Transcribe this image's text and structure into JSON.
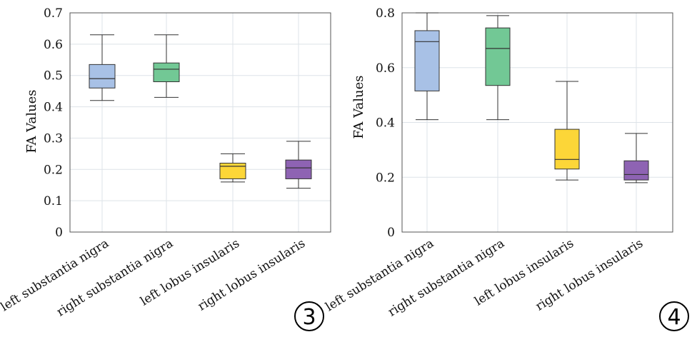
{
  "chart_data": [
    {
      "type": "box",
      "panel_label": "3",
      "ylabel": "FA Values",
      "ylim": [
        0,
        0.7
      ],
      "yticks": [
        "0",
        "0.1",
        "0.2",
        "0.3",
        "0.4",
        "0.5",
        "0.6",
        "0.7"
      ],
      "grid": true,
      "categories": [
        "left substantia nigra",
        "right substantia nigra",
        "left lobus insularis",
        "right lobus insularis"
      ],
      "boxes": [
        {
          "min": 0.42,
          "q1": 0.46,
          "median": 0.49,
          "q3": 0.535,
          "max": 0.63,
          "color": "#a8c1e6"
        },
        {
          "min": 0.43,
          "q1": 0.48,
          "median": 0.52,
          "q3": 0.54,
          "max": 0.63,
          "color": "#72c895"
        },
        {
          "min": 0.16,
          "q1": 0.17,
          "median": 0.21,
          "q3": 0.22,
          "max": 0.25,
          "color": "#fcd638"
        },
        {
          "min": 0.14,
          "q1": 0.17,
          "median": 0.205,
          "q3": 0.23,
          "max": 0.29,
          "color": "#8e63b3"
        }
      ]
    },
    {
      "type": "box",
      "panel_label": "4",
      "ylabel": "FA Values",
      "ylim": [
        0,
        0.8
      ],
      "yticks": [
        "0",
        "0.2",
        "0.4",
        "0.6",
        "0.8"
      ],
      "grid": true,
      "categories": [
        "left substantia nigra",
        "right substantia nigra",
        "left lobus insularis",
        "right lobus insularis"
      ],
      "boxes": [
        {
          "min": 0.41,
          "q1": 0.515,
          "median": 0.695,
          "q3": 0.735,
          "max": 0.8,
          "color": "#a8c1e6"
        },
        {
          "min": 0.41,
          "q1": 0.535,
          "median": 0.67,
          "q3": 0.745,
          "max": 0.79,
          "color": "#72c895"
        },
        {
          "min": 0.19,
          "q1": 0.23,
          "median": 0.265,
          "q3": 0.375,
          "max": 0.55,
          "color": "#fcd638"
        },
        {
          "min": 0.18,
          "q1": 0.19,
          "median": 0.21,
          "q3": 0.26,
          "max": 0.36,
          "color": "#8e63b3"
        }
      ]
    }
  ]
}
